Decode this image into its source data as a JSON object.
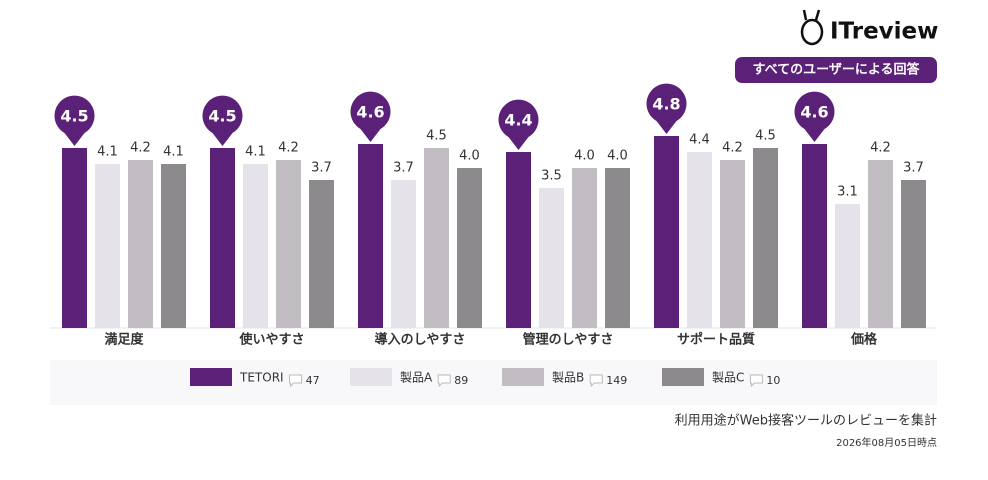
{
  "chart_data": {
    "type": "bar",
    "brand": "ITreview",
    "badge": "すべてのユーザーによる回答",
    "categories": [
      "満足度",
      "使いやすさ",
      "導入のしやすさ",
      "管理のしやすさ",
      "サポート品質",
      "価格"
    ],
    "series": [
      {
        "name": "TETORI",
        "color": "#5b2179",
        "review_count": 47,
        "values": [
          4.5,
          4.5,
          4.6,
          4.4,
          4.8,
          4.6
        ],
        "value_labels": [
          "4.5",
          "4.5",
          "4.6",
          "4.4",
          "4.8",
          "4.6"
        ]
      },
      {
        "name": "製品A",
        "color": "#e5e2e9",
        "review_count": 89,
        "values": [
          4.1,
          4.1,
          3.7,
          3.5,
          4.4,
          3.1
        ],
        "value_labels": [
          "4.1",
          "4.1",
          "3.7",
          "3.5",
          "4.4",
          "3.1"
        ]
      },
      {
        "name": "製品B",
        "color": "#c1bdc3",
        "review_count": 149,
        "values": [
          4.2,
          4.2,
          4.5,
          4.0,
          4.2,
          4.2
        ],
        "value_labels": [
          "4.2",
          "4.2",
          "4.5",
          "4.0",
          "4.2",
          "4.2"
        ]
      },
      {
        "name": "製品C",
        "color": "#8d8a8e",
        "review_count": 10,
        "values": [
          4.1,
          3.7,
          4.0,
          4.0,
          4.5,
          3.7
        ],
        "value_labels": [
          "4.1",
          "3.7",
          "4.0",
          "4.0",
          "4.5",
          "3.7"
        ]
      }
    ],
    "note": "利用用途がWeb接客ツールのレビューを集計",
    "date": "2026年08月05日時点"
  }
}
